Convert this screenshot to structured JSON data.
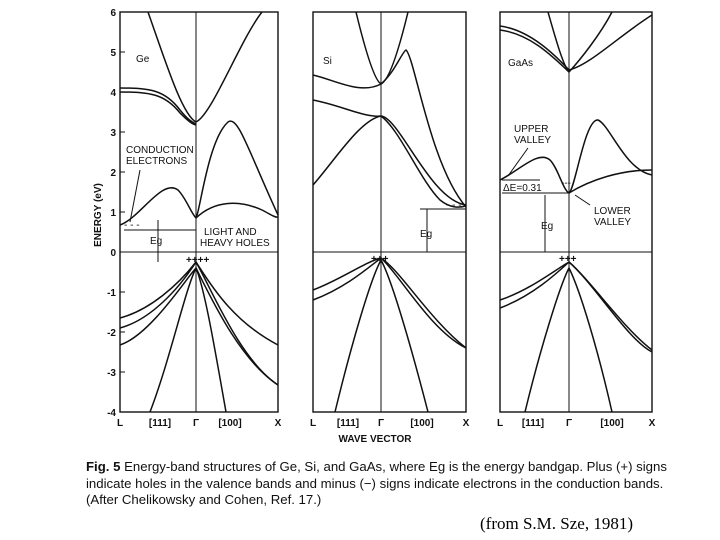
{
  "figure": {
    "y_axis_label": "ENERGY (eV)",
    "y_ticks": [
      "6",
      "5",
      "4",
      "3",
      "2",
      "1",
      "0",
      "-1",
      "-2",
      "-3",
      "-4"
    ],
    "x_axis_label": "WAVE VECTOR",
    "k_labels": [
      "L",
      "[111]",
      "Γ",
      "[100]",
      "X"
    ],
    "panels": [
      {
        "name": "Ge",
        "annotations": {
          "conduction": [
            "CONDUCTION",
            "ELECTRONS"
          ],
          "eg": "Eg",
          "holes": [
            "LIGHT AND",
            "HEAVY HOLES"
          ]
        }
      },
      {
        "name": "Si",
        "annotations": {
          "eg": "Eg"
        }
      },
      {
        "name": "GaAs",
        "annotations": {
          "upper_valley": [
            "UPPER",
            "VALLEY"
          ],
          "delta_e": "ΔE=0.31",
          "eg": "Eg",
          "lower_valley": [
            "LOWER",
            "VALLEY"
          ]
        }
      }
    ]
  },
  "caption": {
    "fig_number": "Fig. 5",
    "text": "Energy-band structures of Ge, Si, and GaAs, where Eg is the energy bandgap. Plus (+) signs indicate holes in the valence bands and minus (−) signs indicate electrons in the conduction bands. (After Chelikowsky and Cohen, Ref. 17.)"
  },
  "source": "(from S.M. Sze, 1981)"
}
